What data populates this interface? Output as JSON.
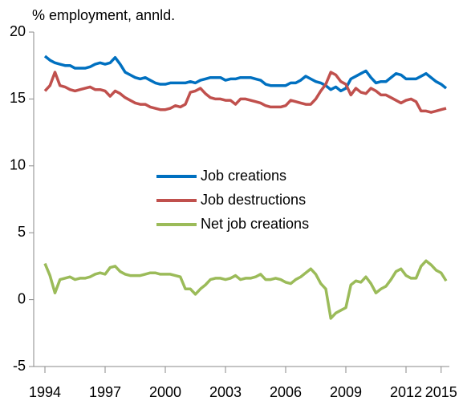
{
  "chart_data": {
    "type": "line",
    "title": "% employment, annld.",
    "categories": [
      "1994",
      null,
      null,
      null,
      null,
      null,
      null,
      null,
      null,
      null,
      null,
      null,
      "1997",
      null,
      null,
      null,
      null,
      null,
      null,
      null,
      null,
      null,
      null,
      null,
      "2000",
      null,
      null,
      null,
      null,
      null,
      null,
      null,
      null,
      null,
      null,
      null,
      "2003",
      null,
      null,
      null,
      null,
      null,
      null,
      null,
      null,
      null,
      null,
      null,
      "2006",
      null,
      null,
      null,
      null,
      null,
      null,
      null,
      null,
      null,
      null,
      null,
      "2009",
      null,
      null,
      null,
      null,
      null,
      null,
      null,
      null,
      null,
      null,
      null,
      "2012",
      null,
      null,
      null,
      null,
      null,
      null,
      "2015",
      null
    ],
    "series": [
      {
        "name": "Job creations",
        "color": "#0070c0",
        "values": [
          18.2,
          17.9,
          17.7,
          17.6,
          17.5,
          17.5,
          17.3,
          17.3,
          17.3,
          17.4,
          17.6,
          17.7,
          17.6,
          17.7,
          18.1,
          17.6,
          17.0,
          16.8,
          16.6,
          16.5,
          16.6,
          16.4,
          16.2,
          16.1,
          16.1,
          16.2,
          16.2,
          16.2,
          16.2,
          16.3,
          16.2,
          16.4,
          16.5,
          16.6,
          16.6,
          16.6,
          16.4,
          16.5,
          16.5,
          16.6,
          16.6,
          16.6,
          16.5,
          16.4,
          16.1,
          16.0,
          16.0,
          16.0,
          16.0,
          16.2,
          16.2,
          16.4,
          16.7,
          16.5,
          16.3,
          16.2,
          16.0,
          15.7,
          15.9,
          15.6,
          15.8,
          16.5,
          16.7,
          16.9,
          17.1,
          16.6,
          16.2,
          16.3,
          16.3,
          16.6,
          16.9,
          16.8,
          16.5,
          16.5,
          16.5,
          16.7,
          16.9,
          16.6,
          16.3,
          16.1,
          15.8
        ]
      },
      {
        "name": "Job destructions",
        "color": "#c0504d",
        "values": [
          15.6,
          16.0,
          17.0,
          16.0,
          15.9,
          15.7,
          15.6,
          15.7,
          15.8,
          15.9,
          15.7,
          15.7,
          15.6,
          15.2,
          15.6,
          15.4,
          15.1,
          14.9,
          14.7,
          14.6,
          14.6,
          14.4,
          14.3,
          14.2,
          14.2,
          14.3,
          14.5,
          14.4,
          14.6,
          15.5,
          15.6,
          15.8,
          15.4,
          15.1,
          15.0,
          15.0,
          14.9,
          14.9,
          14.6,
          15.0,
          15.0,
          14.9,
          14.8,
          14.7,
          14.5,
          14.4,
          14.4,
          14.4,
          14.5,
          14.9,
          14.8,
          14.7,
          14.6,
          14.6,
          15.0,
          15.6,
          16.1,
          17.0,
          16.8,
          16.3,
          16.1,
          15.3,
          15.8,
          15.5,
          15.4,
          15.8,
          15.6,
          15.3,
          15.3,
          15.1,
          14.9,
          14.7,
          14.9,
          15.0,
          14.8,
          14.1,
          14.1,
          14.0,
          14.1,
          14.2,
          14.3
        ]
      },
      {
        "name": "Net job creations",
        "color": "#9bbb59",
        "values": [
          2.7,
          1.8,
          0.5,
          1.5,
          1.6,
          1.7,
          1.5,
          1.6,
          1.6,
          1.7,
          1.9,
          2.0,
          1.9,
          2.4,
          2.5,
          2.1,
          1.9,
          1.8,
          1.8,
          1.8,
          1.9,
          2.0,
          2.0,
          1.9,
          1.9,
          1.9,
          1.8,
          1.7,
          0.8,
          0.8,
          0.4,
          0.8,
          1.1,
          1.5,
          1.6,
          1.6,
          1.5,
          1.6,
          1.8,
          1.5,
          1.6,
          1.6,
          1.7,
          1.9,
          1.5,
          1.5,
          1.6,
          1.5,
          1.3,
          1.2,
          1.5,
          1.7,
          2.0,
          2.3,
          1.9,
          1.2,
          0.8,
          -1.4,
          -1.0,
          -0.8,
          -0.6,
          1.1,
          1.4,
          1.3,
          1.7,
          1.2,
          0.5,
          0.8,
          1.0,
          1.5,
          2.1,
          2.3,
          1.8,
          1.6,
          1.6,
          2.5,
          2.9,
          2.6,
          2.2,
          2.0,
          1.4
        ]
      }
    ],
    "ylim": [
      -5,
      20
    ],
    "yticks": [
      -5,
      0,
      5,
      10,
      15,
      20
    ],
    "grid": false
  }
}
